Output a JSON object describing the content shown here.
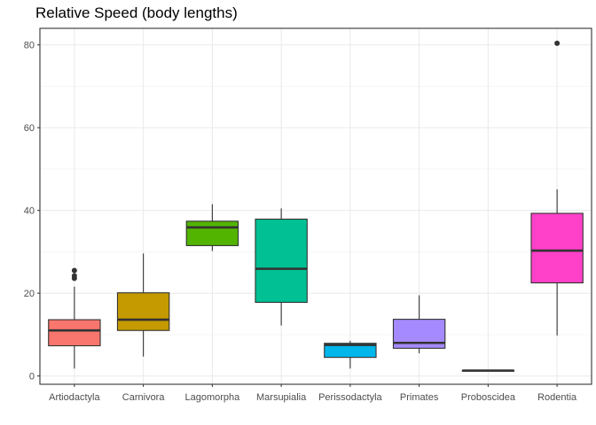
{
  "chart_data": {
    "type": "box",
    "title": "Relative Speed (body lengths)",
    "xlabel": "",
    "ylabel": "",
    "ylim": [
      -2,
      84
    ],
    "yticks": [
      0,
      20,
      40,
      60,
      80
    ],
    "grid": true,
    "legend": "none",
    "categories": [
      "Artiodactyla",
      "Carnivora",
      "Lagomorpha",
      "Marsupialia",
      "Perissodactyla",
      "Primates",
      "Proboscidea",
      "Rodentia"
    ],
    "boxes": [
      {
        "category": "Artiodactyla",
        "min": 1.8,
        "q1": 7.3,
        "median": 11.0,
        "q3": 13.6,
        "max": 21.6,
        "outliers": [
          23.6,
          24.2,
          25.5
        ],
        "color": "#F8766D"
      },
      {
        "category": "Carnivora",
        "min": 4.7,
        "q1": 11.0,
        "median": 13.6,
        "q3": 20.1,
        "max": 29.6,
        "outliers": [],
        "color": "#C49A00"
      },
      {
        "category": "Lagomorpha",
        "min": 30.2,
        "q1": 31.5,
        "median": 35.9,
        "q3": 37.4,
        "max": 41.5,
        "outliers": [],
        "color": "#53B400"
      },
      {
        "category": "Marsupialia",
        "min": 12.2,
        "q1": 17.8,
        "median": 25.9,
        "q3": 37.9,
        "max": 40.5,
        "outliers": [],
        "color": "#00C094"
      },
      {
        "category": "Perissodactyla",
        "min": 1.8,
        "q1": 4.5,
        "median": 7.5,
        "q3": 7.9,
        "max": 8.5,
        "outliers": [],
        "color": "#00B6EB"
      },
      {
        "category": "Primates",
        "min": 5.5,
        "q1": 6.7,
        "median": 8.0,
        "q3": 13.7,
        "max": 19.5,
        "outliers": [],
        "color": "#A58AFF"
      },
      {
        "category": "Proboscidea",
        "min": 1.3,
        "q1": 1.3,
        "median": 1.3,
        "q3": 1.3,
        "max": 1.3,
        "outliers": [],
        "color": "#FB61D7"
      },
      {
        "category": "Rodentia",
        "min": 9.8,
        "q1": 22.5,
        "median": 30.3,
        "q3": 39.3,
        "max": 45.1,
        "outliers": [
          80.4
        ],
        "color": "#FF40C8"
      }
    ]
  }
}
